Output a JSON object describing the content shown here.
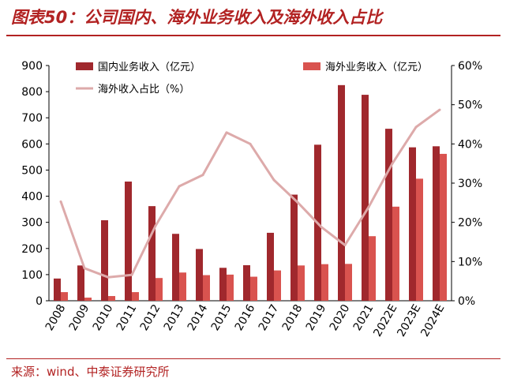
{
  "header": {
    "title": "图表50：公司国内、海外业务收入及海外收入占比"
  },
  "footer": {
    "source": "来源：wind、中泰证券研究所"
  },
  "chart_data": {
    "type": "bar",
    "categories": [
      "2008",
      "2009",
      "2010",
      "2011",
      "2012",
      "2013",
      "2014",
      "2015",
      "2016",
      "2017",
      "2018",
      "2019",
      "2020",
      "2021",
      "2022E",
      "2023E",
      "2024E"
    ],
    "series": [
      {
        "name": "国内业务收入（亿元）",
        "type": "bar",
        "axis": "left",
        "color": "#a0282d",
        "values": [
          85,
          135,
          308,
          456,
          362,
          256,
          198,
          126,
          136,
          260,
          406,
          597,
          825,
          788,
          658,
          587,
          591
        ]
      },
      {
        "name": "海外业务收入（亿元）",
        "type": "bar",
        "axis": "left",
        "color": "#d9534f",
        "values": [
          33,
          12,
          18,
          33,
          87,
          108,
          98,
          100,
          92,
          116,
          135,
          140,
          141,
          247,
          360,
          467,
          562
        ]
      },
      {
        "name": "海外收入占比（%）",
        "type": "line",
        "axis": "right",
        "color": "#ddaaaa",
        "values": [
          25.3,
          8.3,
          6.0,
          6.6,
          19.1,
          29.2,
          32.1,
          42.9,
          40.0,
          30.8,
          25.1,
          18.8,
          14.2,
          23.9,
          35.0,
          44.3,
          48.7
        ]
      }
    ],
    "left_axis": {
      "min": 0,
      "max": 900,
      "ticks": [
        "0",
        "100",
        "200",
        "300",
        "400",
        "500",
        "600",
        "700",
        "800",
        "900"
      ]
    },
    "right_axis": {
      "min": 0,
      "max": 60,
      "ticks": [
        "0%",
        "10%",
        "20%",
        "30%",
        "40%",
        "50%",
        "60%"
      ]
    },
    "grid": false,
    "legend": "top"
  }
}
